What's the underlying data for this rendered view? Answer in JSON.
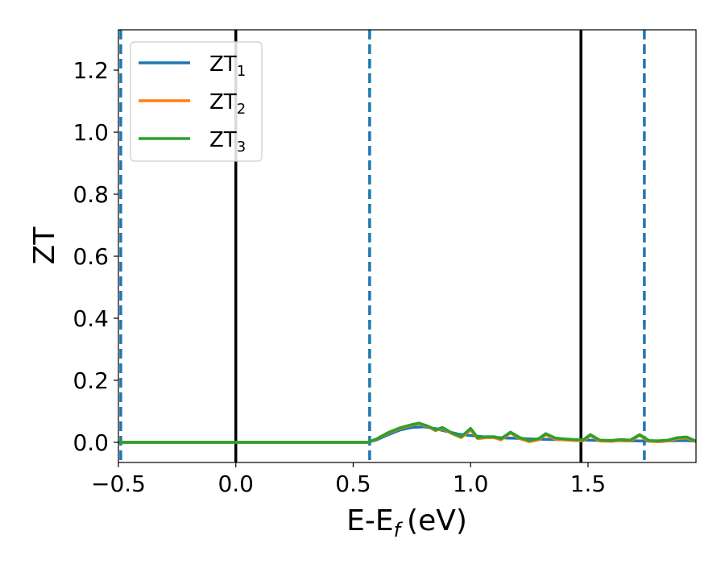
{
  "chart_data": {
    "type": "line",
    "title": "",
    "xlabel": "E-E",
    "xlabel_sub": "f",
    "xlabel_unit": "(eV)",
    "ylabel": "ZT",
    "xlim": [
      -0.5,
      1.96
    ],
    "ylim": [
      -0.065,
      1.33
    ],
    "xticks": [
      {
        "value": -0.5,
        "label": "−0.5"
      },
      {
        "value": 0.0,
        "label": "0.0"
      },
      {
        "value": 0.5,
        "label": "0.5"
      },
      {
        "value": 1.0,
        "label": "1.0"
      },
      {
        "value": 1.5,
        "label": "1.5"
      }
    ],
    "yticks": [
      {
        "value": 0.0,
        "label": "0.0"
      },
      {
        "value": 0.2,
        "label": "0.2"
      },
      {
        "value": 0.4,
        "label": "0.4"
      },
      {
        "value": 0.6,
        "label": "0.6"
      },
      {
        "value": 0.8,
        "label": "0.8"
      },
      {
        "value": 1.0,
        "label": "1.0"
      },
      {
        "value": 1.2,
        "label": "1.2"
      }
    ],
    "grid": false,
    "legend_position": "top-left",
    "vlines": [
      {
        "x": -0.49,
        "style": "dashed",
        "color": "#1f77b4"
      },
      {
        "x": 0.0,
        "style": "solid",
        "color": "#000000"
      },
      {
        "x": 0.57,
        "style": "dashed",
        "color": "#1f77b4"
      },
      {
        "x": 1.47,
        "style": "solid",
        "color": "#000000"
      },
      {
        "x": 1.74,
        "style": "dashed",
        "color": "#1f77b4"
      }
    ],
    "series": [
      {
        "name": "ZT",
        "sub": "1",
        "color": "#1f77b4",
        "x": [
          -0.5,
          0.0,
          0.5,
          0.56,
          0.6,
          0.65,
          0.7,
          0.75,
          0.8,
          0.85,
          0.9,
          0.95,
          1.0,
          1.05,
          1.1,
          1.15,
          1.2,
          1.25,
          1.3,
          1.35,
          1.4,
          1.45,
          1.5,
          1.55,
          1.6,
          1.65,
          1.7,
          1.75,
          1.8,
          1.85,
          1.9,
          1.96
        ],
        "y": [
          0.0,
          0.0,
          0.0,
          0.0,
          0.008,
          0.025,
          0.04,
          0.048,
          0.05,
          0.044,
          0.035,
          0.026,
          0.022,
          0.018,
          0.016,
          0.014,
          0.013,
          0.011,
          0.01,
          0.009,
          0.008,
          0.007,
          0.007,
          0.006,
          0.006,
          0.005,
          0.005,
          0.004,
          0.004,
          0.005,
          0.006,
          0.004
        ]
      },
      {
        "name": "ZT",
        "sub": "2",
        "color": "#ff7f0e",
        "x": [
          -0.5,
          0.0,
          0.5,
          0.56,
          0.6,
          0.65,
          0.7,
          0.75,
          0.78,
          0.82,
          0.85,
          0.88,
          0.92,
          0.96,
          1.0,
          1.03,
          1.07,
          1.1,
          1.13,
          1.17,
          1.21,
          1.25,
          1.29,
          1.32,
          1.36,
          1.4,
          1.44,
          1.48,
          1.51,
          1.55,
          1.6,
          1.64,
          1.68,
          1.72,
          1.76,
          1.8,
          1.84,
          1.88,
          1.92,
          1.96
        ],
        "y": [
          0.0,
          0.0,
          0.0,
          0.0,
          0.01,
          0.03,
          0.045,
          0.055,
          0.06,
          0.05,
          0.038,
          0.045,
          0.028,
          0.015,
          0.04,
          0.012,
          0.015,
          0.015,
          0.008,
          0.03,
          0.012,
          0.002,
          0.008,
          0.025,
          0.01,
          0.008,
          0.006,
          0.005,
          0.022,
          0.004,
          0.003,
          0.006,
          0.004,
          0.022,
          0.003,
          0.002,
          0.004,
          0.012,
          0.014,
          0.002
        ]
      },
      {
        "name": "ZT",
        "sub": "3",
        "color": "#2ca02c",
        "x": [
          -0.5,
          0.0,
          0.5,
          0.56,
          0.6,
          0.65,
          0.7,
          0.75,
          0.78,
          0.82,
          0.85,
          0.88,
          0.92,
          0.96,
          1.0,
          1.03,
          1.07,
          1.1,
          1.13,
          1.17,
          1.21,
          1.25,
          1.29,
          1.32,
          1.36,
          1.4,
          1.44,
          1.48,
          1.51,
          1.55,
          1.6,
          1.64,
          1.68,
          1.72,
          1.76,
          1.8,
          1.84,
          1.88,
          1.92,
          1.96
        ],
        "y": [
          0.0,
          0.0,
          0.0,
          0.0,
          0.011,
          0.032,
          0.047,
          0.057,
          0.062,
          0.052,
          0.04,
          0.048,
          0.03,
          0.018,
          0.045,
          0.015,
          0.018,
          0.018,
          0.012,
          0.033,
          0.015,
          0.006,
          0.012,
          0.028,
          0.014,
          0.011,
          0.009,
          0.008,
          0.025,
          0.007,
          0.006,
          0.009,
          0.007,
          0.025,
          0.006,
          0.005,
          0.007,
          0.015,
          0.017,
          0.004
        ]
      }
    ]
  }
}
